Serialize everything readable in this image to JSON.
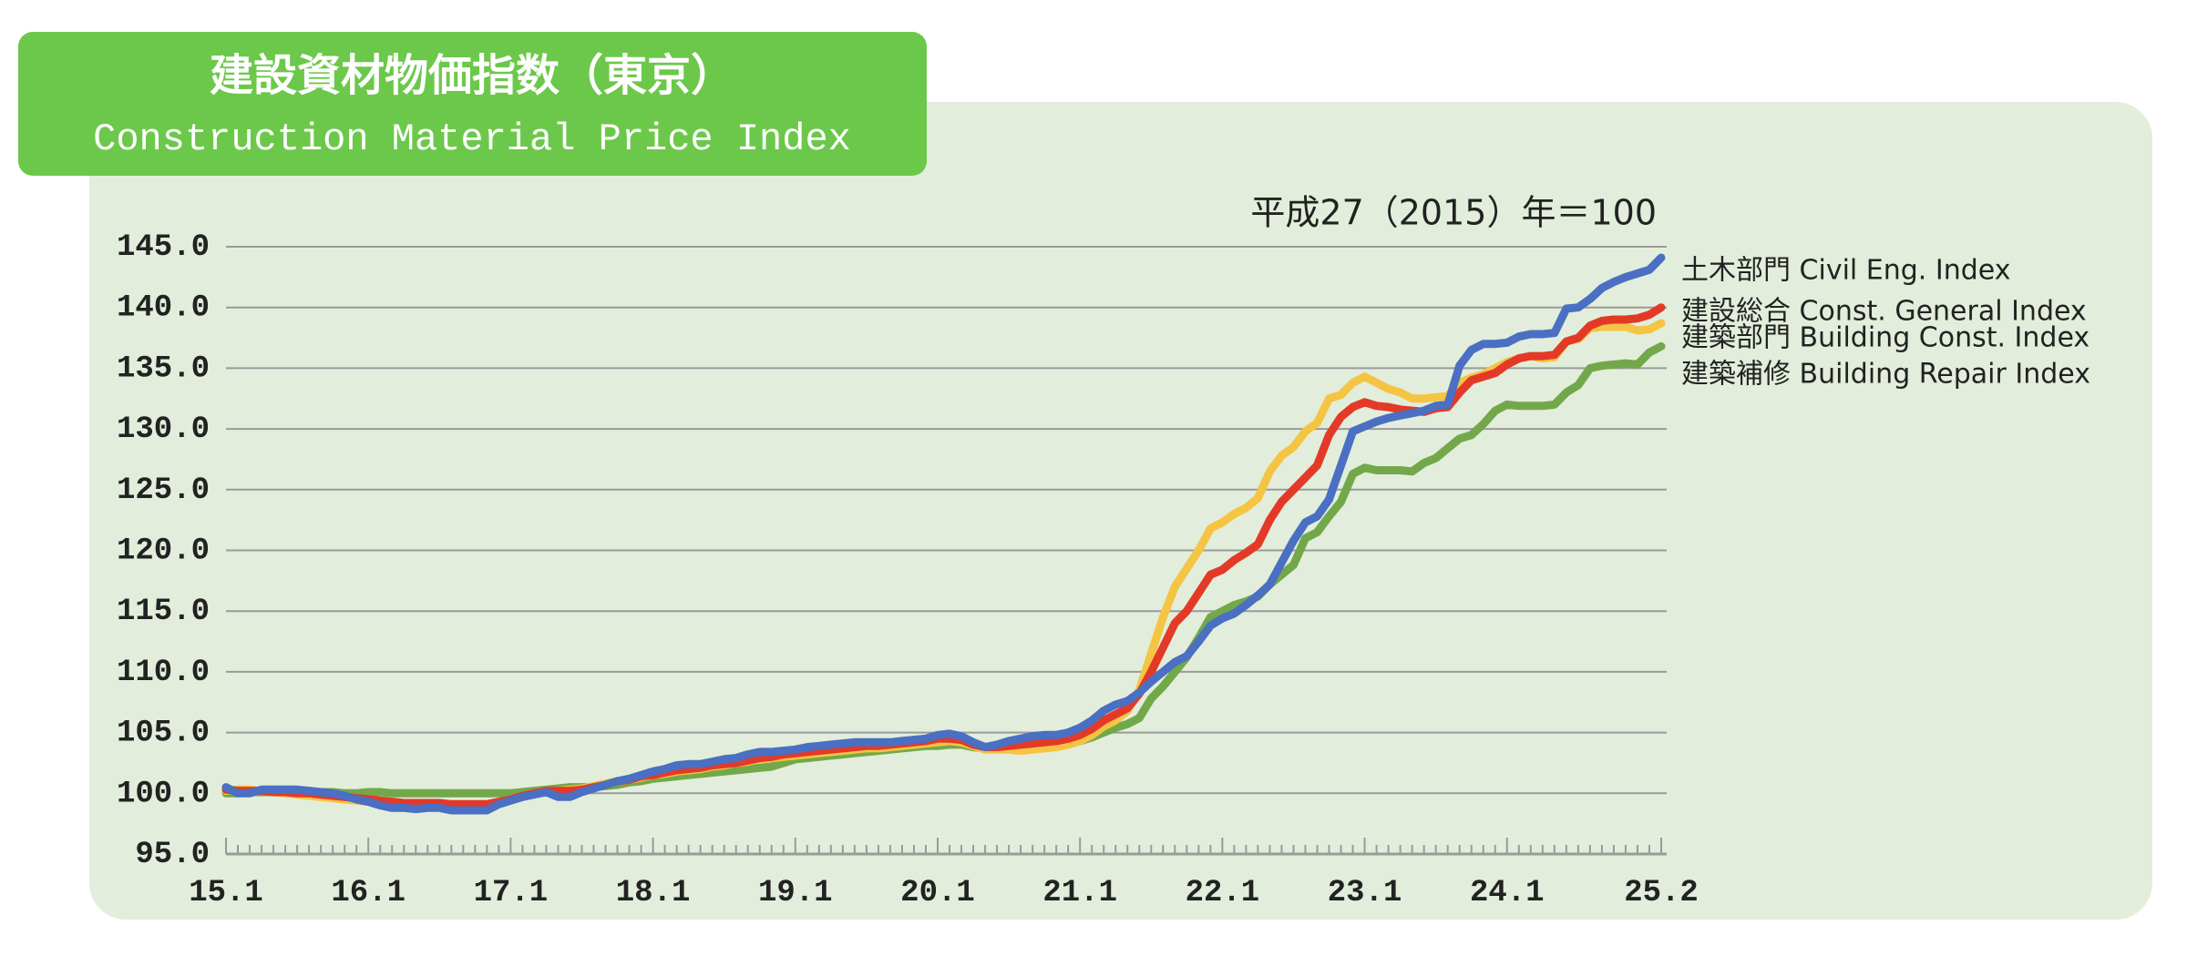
{
  "chart_data": {
    "type": "line",
    "title": "建設資材物価指数（東京）",
    "subtitle": "Construction Material Price Index",
    "annotation": "平成27（2015）年＝100",
    "categories": [
      "15.1",
      null,
      null,
      null,
      null,
      null,
      null,
      null,
      null,
      null,
      null,
      null,
      "16.1",
      null,
      null,
      null,
      null,
      null,
      null,
      null,
      null,
      null,
      null,
      null,
      "17.1",
      null,
      null,
      null,
      null,
      null,
      null,
      null,
      null,
      null,
      null,
      null,
      "18.1",
      null,
      null,
      null,
      null,
      null,
      null,
      null,
      null,
      null,
      null,
      null,
      "19.1",
      null,
      null,
      null,
      null,
      null,
      null,
      null,
      null,
      null,
      null,
      null,
      "20.1",
      null,
      null,
      null,
      null,
      null,
      null,
      null,
      null,
      null,
      null,
      null,
      "21.1",
      null,
      null,
      null,
      null,
      null,
      null,
      null,
      null,
      null,
      null,
      null,
      "22.1",
      null,
      null,
      null,
      null,
      null,
      null,
      null,
      null,
      null,
      null,
      null,
      "23.1",
      null,
      null,
      null,
      null,
      null,
      null,
      null,
      null,
      null,
      null,
      null,
      "24.1",
      null,
      null,
      null,
      null,
      null,
      null,
      null,
      null,
      null,
      null,
      null,
      null,
      "25.2"
    ],
    "ylim": [
      95,
      145
    ],
    "yticks": [
      {
        "value": 95,
        "label": "95.0"
      },
      {
        "value": 100,
        "label": "100.0"
      },
      {
        "value": 105,
        "label": "105.0"
      },
      {
        "value": 110,
        "label": "110.0"
      },
      {
        "value": 115,
        "label": "115.0"
      },
      {
        "value": 120,
        "label": "120.0"
      },
      {
        "value": 125,
        "label": "125.0"
      },
      {
        "value": 130,
        "label": "130.0"
      },
      {
        "value": 135,
        "label": "135.0"
      },
      {
        "value": 140,
        "label": "140.0"
      },
      {
        "value": 145,
        "label": "145.0"
      }
    ],
    "grid": true,
    "series": [
      {
        "name": "土木部門 Civil Eng. Index",
        "color": "#4a6fc3",
        "values": [
          100.5,
          100,
          100,
          100.3,
          100.3,
          100.3,
          100.3,
          100.2,
          100.1,
          100,
          99.8,
          99.5,
          99.3,
          99,
          98.8,
          98.8,
          98.7,
          98.8,
          98.8,
          98.6,
          98.6,
          98.6,
          98.6,
          99.1,
          99.4,
          99.7,
          99.9,
          100.1,
          99.7,
          99.7,
          100.1,
          100.4,
          100.7,
          101,
          101.2,
          101.5,
          101.8,
          102,
          102.3,
          102.4,
          102.4,
          102.6,
          102.8,
          102.9,
          103.2,
          103.4,
          103.4,
          103.5,
          103.6,
          103.8,
          103.9,
          104,
          104.1,
          104.2,
          104.2,
          104.2,
          104.2,
          104.3,
          104.4,
          104.5,
          104.8,
          104.9,
          104.7,
          104.2,
          103.8,
          104,
          104.3,
          104.5,
          104.7,
          104.8,
          104.8,
          105,
          105.4,
          106,
          106.8,
          107.3,
          107.6,
          108.3,
          109.2,
          110,
          110.8,
          111.3,
          112.5,
          113.8,
          114.4,
          114.8,
          115.5,
          116.3,
          117.2,
          119,
          120.8,
          122.3,
          122.8,
          124.2,
          127,
          129.8,
          130.2,
          130.6,
          130.9,
          131.1,
          131.3,
          131.5,
          131.9,
          132,
          135.2,
          136.5,
          137,
          137,
          137.1,
          137.6,
          137.8,
          137.8,
          137.9,
          139.9,
          140,
          140.7,
          141.6,
          142.1,
          142.5,
          142.8,
          143.1,
          144.1
        ]
      },
      {
        "name": "建設総合 Const. General Index",
        "color": "#e33a28",
        "values": [
          100.3,
          100.2,
          100.2,
          100.2,
          100.1,
          100.1,
          100,
          100,
          99.9,
          99.8,
          99.7,
          99.6,
          99.5,
          99.4,
          99.3,
          99.2,
          99.2,
          99.2,
          99.2,
          99.1,
          99.1,
          99.1,
          99.1,
          99.3,
          99.5,
          99.8,
          100,
          100.2,
          100.2,
          100.2,
          100.3,
          100.5,
          100.7,
          101,
          101.1,
          101.4,
          101.5,
          101.7,
          101.9,
          102,
          102.1,
          102.3,
          102.4,
          102.5,
          102.7,
          102.9,
          103,
          103.2,
          103.3,
          103.4,
          103.5,
          103.6,
          103.7,
          103.8,
          103.9,
          103.9,
          104,
          104.1,
          104.2,
          104.3,
          104.5,
          104.5,
          104.4,
          104,
          103.8,
          103.8,
          103.9,
          104,
          104.1,
          104.2,
          104.3,
          104.5,
          104.8,
          105.3,
          106,
          106.5,
          107,
          108.2,
          110,
          112,
          114,
          115,
          116.5,
          118,
          118.4,
          119.2,
          119.8,
          120.5,
          122.5,
          124,
          125,
          126,
          127,
          129.5,
          131,
          131.8,
          132.2,
          131.9,
          131.8,
          131.6,
          131.5,
          131.4,
          131.7,
          131.8,
          133,
          134,
          134.3,
          134.6,
          135.3,
          135.8,
          136,
          136,
          136.1,
          137.2,
          137.5,
          138.5,
          138.9,
          139,
          139,
          139.1,
          139.4,
          140
        ]
      },
      {
        "name": "建築部門 Building Const. Index",
        "color": "#f5c443",
        "values": [
          100.2,
          100.3,
          100.3,
          100.2,
          100.1,
          100,
          99.9,
          99.8,
          99.7,
          99.6,
          99.5,
          99.4,
          99.3,
          99.2,
          99.2,
          99.1,
          99.1,
          99.1,
          99,
          99,
          99,
          99,
          99.1,
          99.3,
          99.5,
          99.8,
          100,
          100.2,
          100.2,
          100.3,
          100.4,
          100.6,
          100.8,
          101,
          101.1,
          101.3,
          101.5,
          101.6,
          101.8,
          101.9,
          102,
          102.2,
          102.3,
          102.5,
          102.6,
          102.8,
          102.9,
          103,
          103.1,
          103.2,
          103.3,
          103.4,
          103.5,
          103.6,
          103.7,
          103.7,
          103.8,
          103.9,
          104,
          104.1,
          104.2,
          104.3,
          104.2,
          103.9,
          103.6,
          103.6,
          103.6,
          103.5,
          103.6,
          103.7,
          103.8,
          104,
          104.3,
          104.8,
          105.5,
          106,
          106.8,
          108.5,
          111.5,
          114.5,
          117,
          118.5,
          120,
          121.8,
          122.3,
          123,
          123.5,
          124.3,
          126.5,
          127.8,
          128.5,
          129.8,
          130.5,
          132.5,
          132.8,
          133.8,
          134.3,
          133.8,
          133.3,
          133,
          132.5,
          132.5,
          132.6,
          132.7,
          133.8,
          134.2,
          134.5,
          135,
          135.5,
          135.8,
          136,
          135.8,
          135.9,
          137.2,
          137.4,
          138.3,
          138.4,
          138.4,
          138.4,
          138.1,
          138.2,
          138.7
        ]
      },
      {
        "name": "建築補修 Building Repair Index",
        "color": "#72a84a",
        "values": [
          100,
          100,
          100.1,
          100.1,
          100.1,
          100.1,
          100.1,
          100.1,
          100.1,
          100.1,
          100,
          100,
          100.1,
          100.1,
          100,
          100,
          100,
          100,
          100,
          100,
          100,
          100,
          100,
          100,
          100,
          100.1,
          100.2,
          100.3,
          100.4,
          100.5,
          100.5,
          100.5,
          100.6,
          100.7,
          100.9,
          101,
          101.2,
          101.3,
          101.4,
          101.5,
          101.6,
          101.7,
          101.8,
          101.9,
          102,
          102.1,
          102.2,
          102.5,
          102.8,
          102.9,
          103,
          103.1,
          103.2,
          103.3,
          103.4,
          103.5,
          103.6,
          103.7,
          103.8,
          103.9,
          103.9,
          104,
          104,
          103.8,
          103.7,
          103.7,
          103.7,
          103.7,
          103.8,
          103.9,
          104,
          104.1,
          104.3,
          104.6,
          105,
          105.4,
          105.7,
          106.2,
          107.8,
          108.8,
          110,
          111.2,
          112.8,
          114.5,
          115,
          115.5,
          115.8,
          116.2,
          117.2,
          118,
          118.8,
          121,
          121.5,
          122.8,
          124,
          126.3,
          126.8,
          126.6,
          126.6,
          126.6,
          126.5,
          127.2,
          127.6,
          128.4,
          129.2,
          129.5,
          130.4,
          131.5,
          132,
          131.9,
          131.9,
          131.9,
          132,
          133,
          133.6,
          135,
          135.2,
          135.3,
          135.4,
          135.3,
          136.3,
          136.8
        ]
      }
    ]
  }
}
